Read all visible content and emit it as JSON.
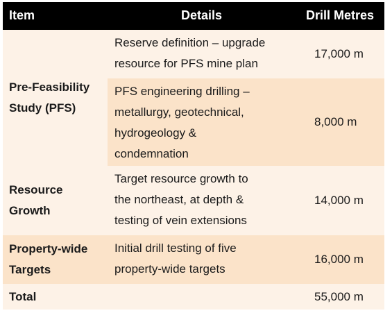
{
  "header": {
    "item": "Item",
    "details": "Details",
    "metres": "Drill Metres"
  },
  "groups": [
    {
      "item_lines": [
        "Pre-Feasibility",
        "Study (PFS)"
      ],
      "rows": [
        {
          "details_lines": [
            "Reserve definition – upgrade",
            "resource for PFS mine plan"
          ],
          "metres": "17,000 m"
        },
        {
          "details_lines": [
            "PFS engineering drilling –",
            "metallurgy, geotechnical,",
            "hydrogeology &",
            "condemnation"
          ],
          "metres": "8,000 m"
        }
      ]
    },
    {
      "item_lines": [
        "Resource",
        "Growth"
      ],
      "rows": [
        {
          "details_lines": [
            "Target resource growth to",
            "the northeast, at depth &",
            "testing of vein extensions"
          ],
          "metres": "14,000 m"
        }
      ]
    },
    {
      "item_lines": [
        "Property-wide",
        "Targets"
      ],
      "rows": [
        {
          "details_lines": [
            "Initial drill testing of five",
            "property-wide targets"
          ],
          "metres": "16,000 m"
        }
      ]
    }
  ],
  "total": {
    "label": "Total",
    "metres": "55,000 m"
  },
  "colors": {
    "header_bg": "#000000",
    "row_light": "#fdf2e7",
    "row_dark": "#fbe3c9"
  }
}
